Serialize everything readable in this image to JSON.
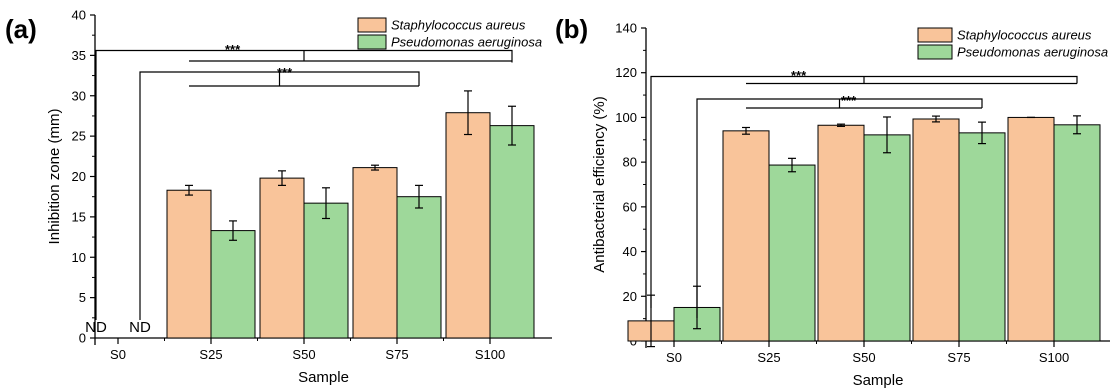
{
  "colors": {
    "staph": "#f9c49a",
    "pseudo": "#9ed89a",
    "edge": "#000000"
  },
  "chart_data": [
    {
      "panel_label": "(a)",
      "type": "bar",
      "xlabel": "Sample",
      "ylabel": "Inhibition zone (mm)",
      "ylim": [
        0,
        40
      ],
      "yticks": [
        0,
        5,
        10,
        15,
        20,
        25,
        30,
        35,
        40
      ],
      "categories": [
        "S0",
        "S25",
        "S50",
        "S75",
        "S100"
      ],
      "series": [
        {
          "name": "Staphylococcus aureus",
          "values": [
            0,
            18.3,
            19.8,
            21.1,
            27.9
          ],
          "errors": [
            0,
            0.6,
            0.9,
            0.3,
            2.7
          ]
        },
        {
          "name": "Pseudomonas aeruginosa",
          "values": [
            0,
            13.3,
            16.7,
            17.5,
            26.3
          ],
          "errors": [
            0,
            1.2,
            1.9,
            1.4,
            2.4
          ]
        }
      ],
      "annotations": {
        "nd_label": "ND",
        "significance": "***"
      },
      "legend": "top-right"
    },
    {
      "panel_label": "(b)",
      "type": "bar",
      "xlabel": "Sample",
      "ylabel": "Antibacterial efficiency (%)",
      "ylim": [
        0,
        140
      ],
      "yticks": [
        0,
        20,
        40,
        60,
        80,
        100,
        120,
        140
      ],
      "categories": [
        "S0",
        "S25",
        "S50",
        "S75",
        "S100"
      ],
      "series": [
        {
          "name": "Staphylococcus aureus",
          "values": [
            9,
            94,
            96.5,
            99.3,
            100
          ],
          "errors": [
            11.5,
            1.5,
            0.5,
            1.3,
            0
          ]
        },
        {
          "name": "Pseudomonas aeruginosa",
          "values": [
            15,
            78.7,
            92.2,
            93.1,
            96.7
          ],
          "errors": [
            9.5,
            3,
            8,
            4.8,
            4
          ]
        }
      ],
      "annotations": {
        "significance": "***"
      },
      "legend": "top-right"
    }
  ]
}
